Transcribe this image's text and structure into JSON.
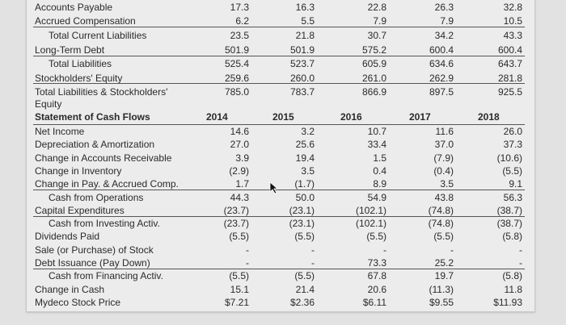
{
  "balance_sheet": {
    "rows": [
      {
        "label": "Accounts Payable",
        "values": [
          "17.3",
          "16.3",
          "22.8",
          "26.3",
          "32.8"
        ],
        "indent": false
      },
      {
        "label": "Accrued Compensation",
        "values": [
          "6.2",
          "5.5",
          "7.9",
          "7.9",
          "10.5"
        ],
        "indent": false
      },
      {
        "label": "Total Current Liabilities",
        "values": [
          "23.5",
          "21.8",
          "30.7",
          "34.2",
          "43.3"
        ],
        "indent": true
      },
      {
        "label": "Long-Term Debt",
        "values": [
          "501.9",
          "501.9",
          "575.2",
          "600.4",
          "600.4"
        ],
        "indent": false
      },
      {
        "label": "Total Liabilities",
        "values": [
          "525.4",
          "523.7",
          "605.9",
          "634.6",
          "643.7"
        ],
        "indent": true
      },
      {
        "label": "Stockholders' Equity",
        "values": [
          "259.6",
          "260.0",
          "261.0",
          "262.9",
          "281.8"
        ],
        "indent": false
      },
      {
        "label": "Total Liabilities & Stockholders'",
        "values": [
          "785.0",
          "783.7",
          "866.9",
          "897.5",
          "925.5"
        ],
        "indent": false
      },
      {
        "label": "Equity",
        "values": [
          "",
          "",
          "",
          "",
          ""
        ],
        "indent": false
      }
    ]
  },
  "cash_flows": {
    "title": "Statement of Cash Flows",
    "years": [
      "2014",
      "2015",
      "2016",
      "2017",
      "2018"
    ],
    "rows": [
      {
        "label": "Net Income",
        "values": [
          "14.6",
          "3.2",
          "10.7",
          "11.6",
          "26.0"
        ],
        "indent": false
      },
      {
        "label": "Depreciation & Amortization",
        "values": [
          "27.0",
          "25.6",
          "33.4",
          "37.0",
          "37.3"
        ],
        "indent": false
      },
      {
        "label": "Change in Accounts Receivable",
        "values": [
          "3.9",
          "19.4",
          "1.5",
          "(7.9)",
          "(10.6)"
        ],
        "indent": false
      },
      {
        "label": "Change in Inventory",
        "values": [
          "(2.9)",
          "3.5",
          "0.4",
          "(0.4)",
          "(5.5)"
        ],
        "indent": false
      },
      {
        "label": "Change in Pay. & Accrued Comp.",
        "values": [
          "1.7",
          "(1.7)",
          "8.9",
          "3.5",
          "9.1"
        ],
        "indent": false
      },
      {
        "label": "Cash from Operations",
        "values": [
          "44.3",
          "50.0",
          "54.9",
          "43.8",
          "56.3"
        ],
        "indent": true
      },
      {
        "label": "Capital Expenditures",
        "values": [
          "(23.7)",
          "(23.1)",
          "(102.1)",
          "(74.8)",
          "(38.7)"
        ],
        "indent": false
      },
      {
        "label": "Cash from Investing Activ.",
        "values": [
          "(23.7)",
          "(23.1)",
          "(102.1)",
          "(74.8)",
          "(38.7)"
        ],
        "indent": true
      },
      {
        "label": "Dividends Paid",
        "values": [
          "(5.5)",
          "(5.5)",
          "(5.5)",
          "(5.5)",
          "(5.8)"
        ],
        "indent": false
      },
      {
        "label": "Sale (or Purchase) of Stock",
        "values": [
          "-",
          "-",
          "-",
          "-",
          "-"
        ],
        "indent": false
      },
      {
        "label": "Debt Issuance (Pay Down)",
        "values": [
          "-",
          "-",
          "73.3",
          "25.2",
          "-"
        ],
        "indent": false
      },
      {
        "label": "Cash from Financing Activ.",
        "values": [
          "(5.5)",
          "(5.5)",
          "67.8",
          "19.7",
          "(5.8)"
        ],
        "indent": true
      },
      {
        "label": "Change in Cash",
        "values": [
          "15.1",
          "21.4",
          "20.6",
          "(11.3)",
          "11.8"
        ],
        "indent": false
      },
      {
        "label": "Mydeco Stock Price",
        "values": [
          "$7.21",
          "$2.36",
          "$6.11",
          "$9.55",
          "$11.93"
        ],
        "indent": false
      }
    ]
  }
}
